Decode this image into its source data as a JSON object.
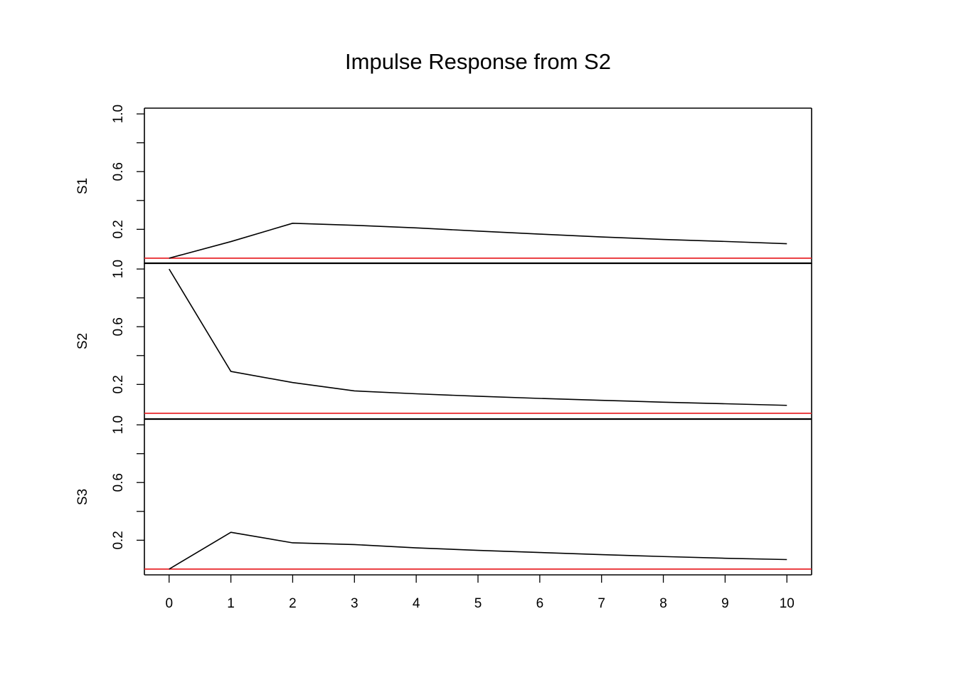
{
  "chart_data": {
    "type": "line",
    "title": "Impulse Response from S2",
    "x": [
      0,
      1,
      2,
      3,
      4,
      5,
      6,
      7,
      8,
      9,
      10
    ],
    "x_tick_labels": [
      "0",
      "1",
      "2",
      "3",
      "4",
      "5",
      "6",
      "7",
      "8",
      "9",
      "10"
    ],
    "xlim": [
      -0.4,
      10.4
    ],
    "y_ticks": [
      0.0,
      0.2,
      0.4,
      0.6,
      0.8,
      1.0
    ],
    "y_tick_labels_shown": [
      "0.2",
      "0.6",
      "1.0"
    ],
    "ylim": [
      -0.04,
      1.04
    ],
    "reference_line": {
      "value": 0,
      "color": "#e8262a"
    },
    "line_color": "#000000",
    "grid": false,
    "panels": [
      {
        "name": "S1",
        "values": [
          0.0,
          0.115,
          0.242,
          0.228,
          0.21,
          0.188,
          0.167,
          0.147,
          0.13,
          0.116,
          0.1
        ]
      },
      {
        "name": "S2",
        "values": [
          1.0,
          0.29,
          0.213,
          0.155,
          0.135,
          0.118,
          0.103,
          0.09,
          0.077,
          0.066,
          0.055
        ]
      },
      {
        "name": "S3",
        "values": [
          0.0,
          0.255,
          0.182,
          0.17,
          0.147,
          0.13,
          0.115,
          0.1,
          0.087,
          0.075,
          0.066
        ]
      }
    ]
  }
}
